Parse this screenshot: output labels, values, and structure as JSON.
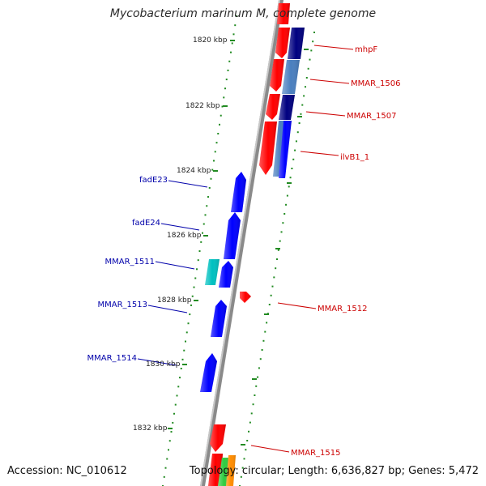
{
  "title": "Mycobacterium marinum M, complete genome",
  "footer": {
    "accession": "Accession: NC_010612",
    "summary": "Topology: circular; Length: 6,636,827 bp; Genes: 5,472"
  },
  "colors": {
    "forward_label": "#cc0000",
    "reverse_label": "#0000aa",
    "tick_dots": "#228b22",
    "backbone": "#8a8a8a"
  },
  "scale_labels": [
    "1820 kbp",
    "1822 kbp",
    "1824 kbp",
    "1826 kbp",
    "1828 kbp",
    "1830 kbp",
    "1832 kbp"
  ],
  "features": [
    {
      "id": "f1",
      "label": "",
      "strand": "forward",
      "color": "#ff0000",
      "lane": 1
    },
    {
      "id": "f2",
      "label": "",
      "strand": "forward",
      "color": "#ff0000",
      "lane": 1
    },
    {
      "id": "f3",
      "label": "",
      "strand": "forward",
      "color": "#ff0000",
      "lane": 1
    },
    {
      "id": "f4",
      "label": "",
      "strand": "forward",
      "color": "#ff0000",
      "lane": 1
    },
    {
      "id": "f5",
      "label": "",
      "strand": "forward",
      "color": "#ff0000",
      "lane": 1
    },
    {
      "id": "c1",
      "label": "mhpF",
      "strand": "forward",
      "color": "#000080",
      "lane": 2
    },
    {
      "id": "c2",
      "label": "MMAR_1506",
      "strand": "forward",
      "color": "#4a7fbf",
      "lane": 2
    },
    {
      "id": "c3",
      "label": "MMAR_1507",
      "strand": "forward",
      "color": "#000080",
      "lane": 2
    },
    {
      "id": "c4",
      "label": "",
      "strand": "forward",
      "color": "#4a7fbf",
      "lane": 2
    },
    {
      "id": "c5",
      "label": "ilvB1_1",
      "strand": "forward",
      "color": "#0000ff",
      "lane": 2
    },
    {
      "id": "r1",
      "label": "fadE23",
      "strand": "reverse",
      "color": "#0000ff",
      "lane": 1
    },
    {
      "id": "r2",
      "label": "fadE24",
      "strand": "reverse",
      "color": "#0000ff",
      "lane": 1
    },
    {
      "id": "r3",
      "label": "",
      "strand": "reverse",
      "color": "#0000ff",
      "lane": 1
    },
    {
      "id": "r4",
      "label": "MMAR_1511",
      "strand": "reverse",
      "color": "#00c0c0",
      "lane": 2
    },
    {
      "id": "f6",
      "label": "MMAR_1512",
      "strand": "forward",
      "color": "#ff0000",
      "lane": 1
    },
    {
      "id": "r5",
      "label": "MMAR_1513",
      "strand": "reverse",
      "color": "#0000ff",
      "lane": 1
    },
    {
      "id": "r6",
      "label": "MMAR_1514",
      "strand": "reverse",
      "color": "#0000ff",
      "lane": 1
    },
    {
      "id": "f7",
      "label": "MMAR_1515",
      "strand": "forward",
      "color": "#ff0000",
      "lane": 1
    },
    {
      "id": "f8",
      "label": "",
      "strand": "forward",
      "color": "#ff0000",
      "lane": 1
    },
    {
      "id": "g1",
      "label": "",
      "strand": "forward",
      "color": "#2ecc40",
      "lane": 2
    },
    {
      "id": "o1",
      "label": "",
      "strand": "forward",
      "color": "#ff8c00",
      "lane": 2
    }
  ]
}
